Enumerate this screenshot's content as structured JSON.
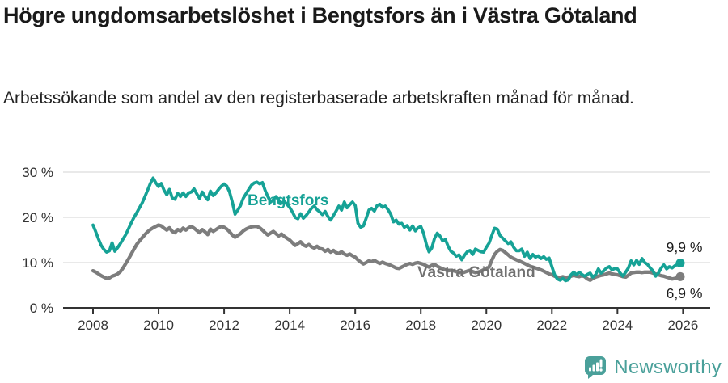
{
  "footer": {
    "logo_text": "Newsworthy"
  },
  "colors": {
    "bengtsfors": "#16a296",
    "vastra_gotaland": "#7d7d7d",
    "series_label_gray": "#717171",
    "grid": "#dcdcdc",
    "axis": "#333333",
    "value_label": "#1a1a1a",
    "logo": "#4aa09a"
  },
  "chart_data": {
    "type": "line",
    "title": "Högre ungdomsarbetslöshet i Bengtsfors än i Västra Götaland",
    "subtitle": "Arbetssökande som andel av den registerbaserade arbetskraften månad för månad.",
    "x_unit": "month",
    "x_range": [
      "2008-01",
      "2025-12"
    ],
    "ylim": [
      0,
      32
    ],
    "grid": "horizontal",
    "legend_position": "inline-labels",
    "y_ticks": [
      {
        "value": 0,
        "label": "0 %"
      },
      {
        "value": 10,
        "label": "10 %"
      },
      {
        "value": 20,
        "label": "20 %"
      },
      {
        "value": 30,
        "label": "30 %"
      }
    ],
    "x_ticks": [
      {
        "year": 2008,
        "label": "2008"
      },
      {
        "year": 2010,
        "label": "2010"
      },
      {
        "year": 2012,
        "label": "2012"
      },
      {
        "year": 2014,
        "label": "2014"
      },
      {
        "year": 2016,
        "label": "2016"
      },
      {
        "year": 2018,
        "label": "2018"
      },
      {
        "year": 2020,
        "label": "2020"
      },
      {
        "year": 2022,
        "label": "2022"
      },
      {
        "year": 2024,
        "label": "2024"
      },
      {
        "year": 2026,
        "label": "2026"
      }
    ],
    "series": [
      {
        "name": "Bengtsfors",
        "color": "#16a296",
        "end_label": "9,9 %",
        "latest_value": 9.9,
        "values": [
          18.3,
          16.8,
          15.2,
          13.8,
          12.9,
          12.3,
          12.6,
          14.4,
          12.5,
          13.3,
          14.2,
          15.2,
          16.2,
          17.5,
          18.8,
          20.0,
          21.0,
          22.1,
          23.2,
          24.6,
          26.0,
          27.5,
          28.7,
          27.6,
          26.8,
          27.5,
          26.0,
          25.0,
          26.2,
          24.3,
          24.0,
          25.3,
          24.6,
          25.4,
          24.6,
          25.4,
          25.6,
          26.3,
          25.2,
          24.2,
          25.6,
          24.6,
          23.9,
          25.8,
          24.8,
          25.4,
          26.2,
          26.9,
          27.4,
          26.9,
          25.6,
          23.4,
          20.7,
          21.6,
          22.6,
          24.2,
          25.2,
          26.2,
          27.1,
          27.6,
          27.8,
          27.4,
          27.7,
          26.0,
          24.6,
          23.4,
          23.9,
          24.6,
          23.8,
          23.1,
          23.6,
          22.9,
          22.2,
          21.2,
          20.0,
          19.7,
          20.8,
          19.8,
          20.4,
          21.2,
          22.0,
          22.5,
          21.7,
          21.2,
          20.6,
          21.3,
          20.2,
          19.4,
          20.4,
          21.4,
          22.5,
          21.6,
          23.4,
          22.1,
          22.8,
          23.4,
          22.6,
          18.7,
          17.8,
          18.1,
          19.8,
          21.6,
          22.0,
          21.4,
          22.6,
          22.9,
          22.2,
          22.5,
          21.7,
          20.7,
          19.0,
          19.4,
          18.5,
          18.7,
          17.8,
          18.2,
          17.2,
          18.1,
          17.0,
          17.7,
          18.0,
          16.5,
          14.1,
          12.4,
          13.2,
          15.3,
          16.5,
          15.9,
          14.8,
          15.1,
          13.6,
          12.5,
          12.1,
          11.4,
          11.7,
          10.6,
          11.6,
          12.4,
          12.7,
          11.8,
          13.0,
          12.7,
          12.4,
          12.3,
          13.4,
          14.3,
          16.0,
          17.6,
          17.4,
          16.0,
          15.4,
          14.8,
          14.2,
          14.6,
          13.4,
          12.6,
          12.6,
          13.0,
          11.4,
          12.3,
          10.9,
          11.8,
          11.2,
          11.5,
          10.9,
          11.3,
          10.7,
          11.0,
          9.1,
          7.3,
          6.4,
          6.1,
          6.5,
          6.0,
          6.2,
          7.3,
          7.9,
          7.3,
          7.9,
          7.4,
          7.0,
          7.4,
          7.7,
          6.8,
          7.3,
          8.6,
          7.7,
          8.2,
          8.8,
          9.1,
          8.4,
          8.7,
          8.6,
          7.7,
          7.0,
          7.9,
          8.8,
          10.4,
          9.5,
          10.5,
          9.6,
          10.9,
          10.0,
          9.6,
          8.8,
          8.2,
          7.0,
          7.7,
          8.8,
          9.5,
          8.6,
          9.1,
          8.8,
          9.3,
          9.6,
          9.9
        ]
      },
      {
        "name": "Västra Götaland",
        "color": "#7d7d7d",
        "end_label": "6,9 %",
        "latest_value": 6.9,
        "values": [
          8.2,
          7.9,
          7.5,
          7.1,
          6.8,
          6.5,
          6.6,
          7.0,
          7.2,
          7.5,
          8.0,
          8.8,
          9.8,
          10.8,
          11.9,
          13.0,
          14.0,
          14.8,
          15.5,
          16.2,
          16.8,
          17.3,
          17.7,
          18.0,
          18.3,
          18.1,
          17.6,
          17.2,
          17.7,
          16.9,
          16.6,
          17.3,
          17.0,
          17.6,
          17.2,
          17.7,
          18.0,
          17.6,
          17.1,
          16.6,
          17.3,
          16.8,
          16.2,
          17.4,
          16.9,
          17.3,
          17.7,
          18.0,
          17.8,
          17.4,
          16.8,
          16.1,
          15.6,
          16.0,
          16.4,
          17.0,
          17.4,
          17.7,
          17.9,
          18.0,
          18.0,
          17.7,
          17.2,
          16.6,
          16.1,
          16.5,
          16.9,
          16.4,
          15.9,
          16.3,
          15.8,
          15.4,
          15.0,
          14.4,
          13.8,
          14.2,
          14.6,
          13.9,
          13.6,
          14.0,
          13.5,
          13.2,
          13.6,
          13.1,
          13.0,
          12.5,
          12.9,
          12.3,
          12.7,
          12.2,
          12.0,
          12.4,
          11.9,
          11.6,
          11.9,
          11.5,
          11.2,
          10.6,
          10.1,
          9.7,
          10.0,
          10.4,
          10.2,
          10.5,
          10.1,
          9.8,
          10.1,
          9.8,
          9.6,
          9.4,
          9.1,
          8.8,
          8.7,
          9.0,
          9.3,
          9.6,
          9.8,
          9.6,
          9.9,
          10.0,
          9.8,
          9.6,
          9.3,
          9.0,
          9.4,
          9.6,
          9.2,
          8.9,
          8.6,
          8.4,
          8.2,
          8.3,
          8.2,
          8.0,
          7.9,
          7.7,
          7.9,
          8.1,
          8.3,
          8.0,
          7.8,
          7.9,
          8.1,
          8.4,
          8.6,
          9.0,
          10.5,
          11.8,
          12.5,
          12.9,
          12.7,
          12.2,
          11.7,
          11.2,
          10.9,
          10.6,
          10.4,
          10.1,
          9.8,
          9.5,
          9.2,
          9.0,
          8.8,
          8.6,
          8.4,
          8.1,
          7.8,
          7.5,
          7.3,
          7.0,
          6.8,
          6.7,
          6.9,
          6.7,
          6.8,
          7.0,
          7.2,
          7.0,
          6.9,
          7.1,
          6.9,
          6.4,
          6.1,
          6.5,
          6.8,
          7.0,
          7.2,
          7.3,
          7.5,
          7.7,
          7.5,
          7.4,
          7.3,
          7.1,
          6.9,
          6.8,
          7.2,
          7.7,
          7.8,
          7.9,
          7.9,
          7.8,
          7.9,
          7.9,
          7.9,
          7.7,
          7.5,
          7.3,
          7.1,
          7.0,
          6.8,
          6.6,
          6.4,
          6.5,
          6.7,
          6.9
        ]
      }
    ]
  }
}
